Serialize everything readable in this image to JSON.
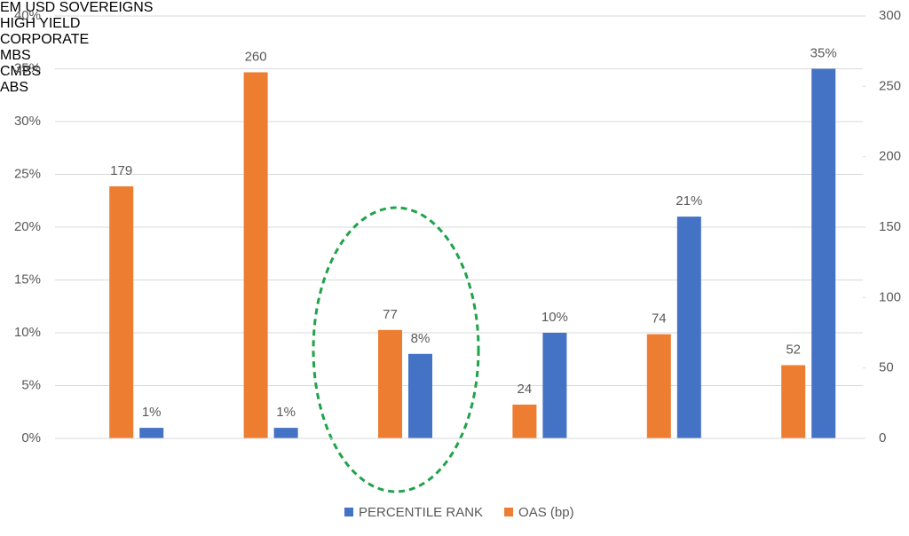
{
  "chart_data": {
    "type": "bar",
    "categories": [
      "EM USD SOVEREIGNS",
      "HIGH YIELD",
      "CORPORATE",
      "MBS",
      "CMBS",
      "ABS"
    ],
    "series": [
      {
        "name": "PERCENTILE RANK",
        "color": "#4472c4",
        "values": [
          1,
          1,
          8,
          10,
          21,
          35
        ],
        "value_labels": [
          "1%",
          "1%",
          "8%",
          "10%",
          "21%",
          "35%"
        ]
      },
      {
        "name": "OAS (bp)",
        "color": "#ed7d31",
        "axis": "y2",
        "values": [
          179,
          260,
          77,
          24,
          74,
          52
        ]
      }
    ],
    "ylim": [
      0,
      40
    ],
    "yticks": [
      {
        "value": 0,
        "label": "0%"
      },
      {
        "value": 5,
        "label": "5%"
      },
      {
        "value": 10,
        "label": "10%"
      },
      {
        "value": 15,
        "label": "15%"
      },
      {
        "value": 20,
        "label": "20%"
      },
      {
        "value": 25,
        "label": "25%"
      },
      {
        "value": 30,
        "label": "30%"
      },
      {
        "value": 35,
        "label": "35%"
      },
      {
        "value": 40,
        "label": "40%"
      }
    ],
    "y2lim": [
      0,
      300
    ],
    "y2ticks": [
      0,
      50,
      100,
      150,
      200,
      250,
      300
    ],
    "grid": true,
    "legend": "bottom"
  }
}
